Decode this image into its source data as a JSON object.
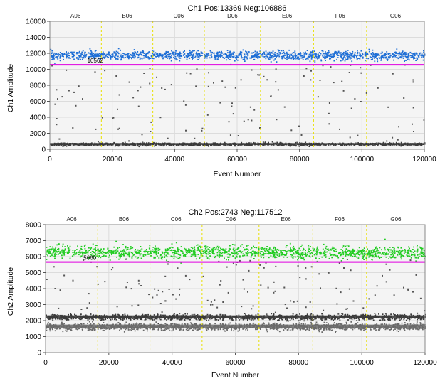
{
  "chart_data": [
    {
      "type": "scatter",
      "title": "Ch1 Pos:13369 Neg:106886",
      "xlabel": "Event Number",
      "ylabel": "Ch1 Amplitude",
      "xlim": [
        0,
        120000
      ],
      "ylim": [
        0,
        16000
      ],
      "xticks": [
        0,
        20000,
        40000,
        60000,
        80000,
        100000,
        120000
      ],
      "yticks": [
        0,
        2000,
        4000,
        6000,
        8000,
        10000,
        12000,
        14000,
        16000
      ],
      "wells": [
        "A06",
        "B06",
        "C06",
        "D06",
        "E06",
        "F06",
        "G06"
      ],
      "well_boundaries": [
        16500,
        33000,
        49500,
        67500,
        84500,
        101500
      ],
      "threshold": 10562,
      "threshold_label": "10562",
      "grid": true,
      "colors": {
        "positive": "#1f6fd6",
        "negative": "#3a3a3a",
        "threshold": "#e000e0",
        "well_boundary": "#e8e000",
        "plot_bg": "#f4f4f4"
      },
      "series": [
        {
          "name": "Positive",
          "band_center": 11800,
          "band_spread": 500
        },
        {
          "name": "Negative",
          "band_center": 700,
          "band_spread": 150
        }
      ]
    },
    {
      "type": "scatter",
      "title": "Ch2 Pos:2743 Neg:117512",
      "xlabel": "Event Number",
      "ylabel": "Ch2 Amplitude",
      "xlim": [
        0,
        120000
      ],
      "ylim": [
        0,
        8000
      ],
      "xticks": [
        0,
        20000,
        40000,
        60000,
        80000,
        100000,
        120000
      ],
      "yticks": [
        0,
        1000,
        2000,
        3000,
        4000,
        5000,
        6000,
        7000,
        8000
      ],
      "wells": [
        "A06",
        "B06",
        "C06",
        "D06",
        "E06",
        "F06",
        "G06"
      ],
      "well_boundaries": [
        16500,
        33000,
        49500,
        67500,
        84500,
        101500
      ],
      "threshold": 5660,
      "threshold_label": "5660",
      "grid": true,
      "colors": {
        "positive": "#22cc22",
        "negative": "#3a3a3a",
        "negative_low": "#6a6a6a",
        "threshold": "#e000e0",
        "well_boundary": "#e8e000",
        "plot_bg": "#f4f4f4"
      },
      "series": [
        {
          "name": "Positive",
          "band_center": 6300,
          "band_spread": 350
        },
        {
          "name": "Negative",
          "band_center": 2250,
          "band_spread": 150
        },
        {
          "name": "Negative",
          "band_center": 1650,
          "band_spread": 200
        }
      ]
    }
  ]
}
